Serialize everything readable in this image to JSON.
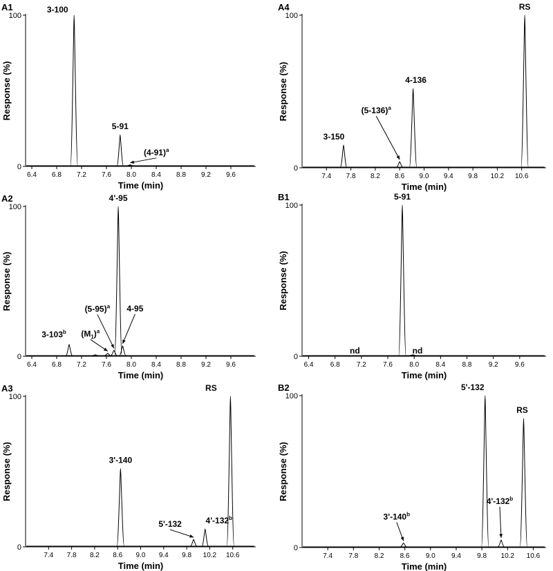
{
  "chart_data": [
    {
      "panel": "A1",
      "type": "line",
      "xlabel": "Time (min)",
      "ylabel": "Response (%)",
      "xticks": [
        6.4,
        6.8,
        7.2,
        7.6,
        8.0,
        8.4,
        8.8,
        9.2,
        9.6
      ],
      "xlim": [
        6.3,
        10.0
      ],
      "ylim": [
        0,
        100
      ],
      "yticks": [
        0,
        100
      ],
      "peaks": [
        {
          "x": 7.08,
          "y": 100,
          "label": "3-100"
        },
        {
          "x": 7.82,
          "y": 21,
          "label": "5-91"
        },
        {
          "x": 7.98,
          "y": 1,
          "label": "(4-91)",
          "sup": "a",
          "arrow": true
        }
      ]
    },
    {
      "panel": "A4",
      "type": "line",
      "xlabel": "Time (min)",
      "ylabel": "Response (%)",
      "xticks": [
        7.4,
        7.8,
        8.2,
        8.6,
        9.0,
        9.4,
        9.8,
        10.2,
        10.6
      ],
      "xlim": [
        7.0,
        11.0
      ],
      "ylim": [
        0,
        100
      ],
      "yticks": [
        0,
        100
      ],
      "peaks": [
        {
          "x": 7.68,
          "y": 15,
          "label": "3-150"
        },
        {
          "x": 8.6,
          "y": 4,
          "label": "(5-136)",
          "sup": "a",
          "arrow": true
        },
        {
          "x": 8.82,
          "y": 52,
          "label": "4-136"
        },
        {
          "x": 10.65,
          "y": 100,
          "label": "RS"
        }
      ]
    },
    {
      "panel": "A2",
      "type": "line",
      "xlabel": "Time (min)",
      "ylabel": "Response (%)",
      "xticks": [
        6.4,
        6.8,
        7.2,
        7.6,
        8.0,
        8.4,
        8.8,
        9.2,
        9.6
      ],
      "xlim": [
        6.3,
        10.0
      ],
      "ylim": [
        0,
        100
      ],
      "yticks": [
        0,
        100
      ],
      "peaks": [
        {
          "x": 7.0,
          "y": 8,
          "label": "3-103",
          "sup": "b"
        },
        {
          "x": 7.42,
          "y": 1,
          "label": ""
        },
        {
          "x": 7.62,
          "y": 2,
          "label": "(M1)",
          "sup": "a",
          "arrow": true
        },
        {
          "x": 7.72,
          "y": 4,
          "label": "(5-95)",
          "sup": "a",
          "arrow": true
        },
        {
          "x": 7.79,
          "y": 100,
          "label": "4'-95"
        },
        {
          "x": 7.86,
          "y": 7,
          "label": "4-95",
          "arrow": true
        }
      ]
    },
    {
      "panel": "B1",
      "type": "line",
      "xlabel": "Time (min)",
      "ylabel": "Response (%)",
      "xticks": [
        6.4,
        6.8,
        7.2,
        7.6,
        8.0,
        8.4,
        8.8,
        9.2,
        9.6
      ],
      "xlim": [
        6.3,
        10.0
      ],
      "ylim": [
        0,
        100
      ],
      "yticks": [
        0,
        100
      ],
      "peaks": [
        {
          "x": 7.82,
          "y": 100,
          "label": "5-91"
        },
        {
          "x": 7.98,
          "y": 1,
          "label": ""
        }
      ],
      "notes": [
        {
          "x": 7.1,
          "label": "nd"
        },
        {
          "x": 8.05,
          "label": "nd"
        }
      ]
    },
    {
      "panel": "A3",
      "type": "line",
      "xlabel": "Time (min)",
      "ylabel": "Response (%)",
      "xticks": [
        7.4,
        7.8,
        8.2,
        8.6,
        9.0,
        9.4,
        9.8,
        10.2,
        10.6
      ],
      "xlim": [
        7.0,
        11.0
      ],
      "ylim": [
        0,
        100
      ],
      "yticks": [
        0,
        100
      ],
      "peaks": [
        {
          "x": 8.65,
          "y": 52,
          "label": "3'-140"
        },
        {
          "x": 9.92,
          "y": 5,
          "label": "5'-132",
          "arrow": true
        },
        {
          "x": 10.12,
          "y": 12,
          "label": "4'-132",
          "sup": "b"
        },
        {
          "x": 10.56,
          "y": 100,
          "label": "RS"
        }
      ]
    },
    {
      "panel": "B2",
      "type": "line",
      "xlabel": "Time (min)",
      "ylabel": "Response (%)",
      "xticks": [
        7.4,
        7.8,
        8.2,
        8.6,
        9.0,
        9.4,
        9.8,
        10.2,
        10.6
      ],
      "xlim": [
        7.0,
        10.8
      ],
      "ylim": [
        0,
        100
      ],
      "yticks": [
        0,
        100
      ],
      "peaks": [
        {
          "x": 8.58,
          "y": 3,
          "label": "3'-140",
          "sup": "b",
          "arrow": true
        },
        {
          "x": 9.85,
          "y": 100,
          "label": "5'-132"
        },
        {
          "x": 10.1,
          "y": 5,
          "label": "4'-132",
          "sup": "b",
          "arrow": true
        },
        {
          "x": 10.45,
          "y": 85,
          "label": "RS"
        }
      ]
    }
  ]
}
